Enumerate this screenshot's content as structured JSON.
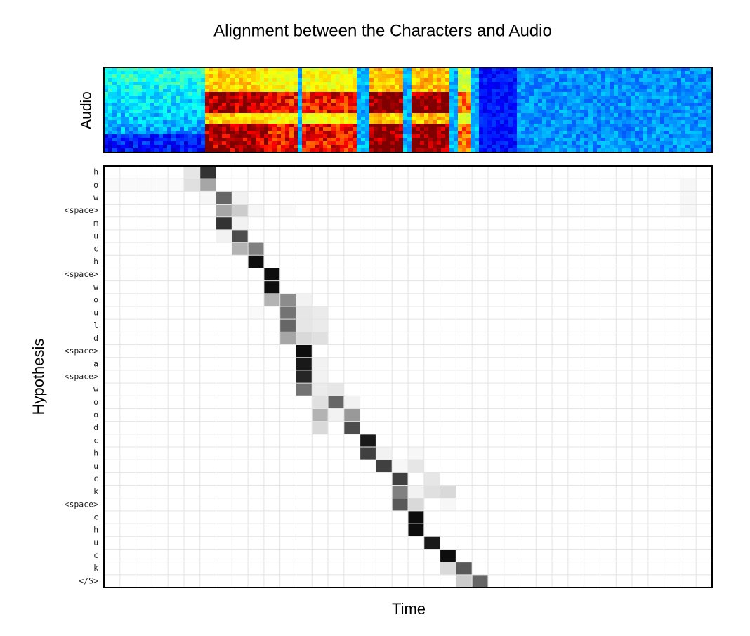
{
  "chart_data": {
    "type": "heatmap",
    "title": "Alignment between the Characters and Audio",
    "spectrogram_label": "Audio",
    "xlabel": "Time",
    "ylabel": "Hypothesis",
    "colormap": "gray_r",
    "vlim": [
      0,
      1
    ],
    "grid": true,
    "x": [
      null,
      null,
      null,
      null,
      null,
      null,
      null,
      null,
      null,
      null,
      null,
      null,
      null,
      null,
      null,
      null,
      null,
      null,
      null,
      null,
      null,
      null,
      null,
      null,
      null,
      null,
      null,
      null,
      null,
      null,
      null,
      null,
      null,
      null,
      null,
      null,
      null,
      null
    ],
    "y": [
      "h",
      "o",
      "w",
      "<space>",
      "m",
      "u",
      "c",
      "h",
      "<space>",
      "w",
      "o",
      "u",
      "l",
      "d",
      "<space>",
      "a",
      "<space>",
      "w",
      "o",
      "o",
      "d",
      "c",
      "h",
      "u",
      "c",
      "k",
      "<space>",
      "c",
      "h",
      "u",
      "c",
      "k",
      "</S>"
    ],
    "values": [
      [
        0,
        0,
        0,
        0,
        0,
        0.1,
        0.8,
        0,
        0,
        0,
        0,
        0,
        0,
        0,
        0,
        0,
        0,
        0,
        0,
        0,
        0,
        0,
        0,
        0,
        0,
        0,
        0,
        0,
        0,
        0,
        0,
        0,
        0,
        0,
        0,
        0,
        0,
        0
      ],
      [
        0.02,
        0.02,
        0.02,
        0.02,
        0.02,
        0.12,
        0.35,
        0,
        0,
        0,
        0,
        0,
        0,
        0,
        0,
        0,
        0,
        0,
        0,
        0,
        0,
        0,
        0,
        0,
        0,
        0,
        0,
        0,
        0,
        0,
        0,
        0,
        0,
        0,
        0,
        0,
        0.03,
        0
      ],
      [
        0,
        0,
        0,
        0,
        0,
        0,
        0.03,
        0.6,
        0.05,
        0,
        0,
        0,
        0,
        0,
        0,
        0,
        0,
        0,
        0,
        0,
        0,
        0,
        0,
        0,
        0,
        0,
        0,
        0,
        0,
        0,
        0,
        0,
        0,
        0,
        0,
        0,
        0.03,
        0
      ],
      [
        0,
        0,
        0,
        0,
        0,
        0,
        0,
        0.35,
        0.2,
        0.03,
        0,
        0.02,
        0,
        0,
        0,
        0,
        0,
        0,
        0,
        0,
        0,
        0,
        0,
        0,
        0,
        0,
        0,
        0,
        0,
        0,
        0,
        0,
        0,
        0,
        0,
        0,
        0.03,
        0
      ],
      [
        0,
        0,
        0,
        0,
        0,
        0,
        0,
        0.8,
        0.05,
        0,
        0,
        0,
        0,
        0,
        0,
        0,
        0,
        0,
        0,
        0,
        0,
        0,
        0,
        0,
        0,
        0,
        0,
        0,
        0,
        0,
        0,
        0,
        0,
        0,
        0,
        0,
        0,
        0
      ],
      [
        0,
        0,
        0,
        0,
        0,
        0,
        0,
        0.05,
        0.7,
        0,
        0,
        0,
        0,
        0,
        0,
        0,
        0,
        0,
        0,
        0,
        0,
        0,
        0,
        0,
        0,
        0,
        0,
        0,
        0,
        0,
        0,
        0,
        0,
        0,
        0,
        0,
        0,
        0
      ],
      [
        0,
        0,
        0,
        0,
        0,
        0,
        0,
        0,
        0.3,
        0.5,
        0,
        0,
        0,
        0,
        0,
        0,
        0,
        0,
        0,
        0,
        0,
        0,
        0,
        0,
        0,
        0,
        0,
        0,
        0,
        0,
        0,
        0,
        0,
        0,
        0,
        0,
        0,
        0
      ],
      [
        0,
        0,
        0,
        0,
        0,
        0,
        0,
        0,
        0,
        0.95,
        0,
        0,
        0,
        0,
        0,
        0,
        0,
        0,
        0,
        0,
        0,
        0,
        0,
        0,
        0,
        0,
        0,
        0,
        0,
        0,
        0,
        0,
        0,
        0,
        0,
        0,
        0,
        0
      ],
      [
        0,
        0,
        0,
        0,
        0,
        0,
        0,
        0,
        0,
        0,
        0.95,
        0,
        0,
        0,
        0,
        0,
        0,
        0,
        0,
        0,
        0,
        0,
        0,
        0,
        0,
        0,
        0,
        0,
        0,
        0,
        0,
        0,
        0,
        0,
        0,
        0,
        0,
        0
      ],
      [
        0,
        0,
        0,
        0,
        0,
        0,
        0,
        0,
        0,
        0,
        0.95,
        0,
        0,
        0,
        0,
        0,
        0,
        0,
        0,
        0,
        0,
        0,
        0,
        0,
        0,
        0,
        0,
        0,
        0,
        0,
        0,
        0,
        0,
        0,
        0,
        0,
        0,
        0
      ],
      [
        0,
        0,
        0,
        0,
        0,
        0,
        0,
        0,
        0,
        0,
        0.3,
        0.45,
        0.05,
        0,
        0,
        0,
        0,
        0,
        0,
        0,
        0,
        0,
        0,
        0,
        0,
        0,
        0,
        0,
        0,
        0,
        0,
        0,
        0,
        0,
        0,
        0,
        0,
        0
      ],
      [
        0,
        0,
        0,
        0,
        0,
        0,
        0,
        0,
        0,
        0.02,
        0,
        0.55,
        0.1,
        0.08,
        0,
        0,
        0,
        0,
        0,
        0,
        0,
        0,
        0,
        0,
        0,
        0,
        0,
        0,
        0,
        0,
        0,
        0,
        0,
        0,
        0,
        0,
        0,
        0
      ],
      [
        0,
        0,
        0,
        0,
        0,
        0,
        0,
        0,
        0,
        0,
        0,
        0.6,
        0.1,
        0.08,
        0,
        0,
        0,
        0,
        0,
        0,
        0,
        0,
        0,
        0,
        0,
        0,
        0,
        0,
        0,
        0,
        0,
        0,
        0,
        0,
        0,
        0,
        0,
        0
      ],
      [
        0,
        0,
        0,
        0,
        0,
        0,
        0,
        0,
        0,
        0,
        0,
        0.35,
        0.15,
        0.12,
        0,
        0,
        0,
        0,
        0,
        0,
        0,
        0,
        0,
        0,
        0,
        0,
        0,
        0,
        0,
        0,
        0,
        0,
        0,
        0,
        0,
        0,
        0,
        0
      ],
      [
        0,
        0,
        0,
        0,
        0,
        0,
        0,
        0,
        0,
        0,
        0,
        0,
        0.95,
        0,
        0,
        0,
        0,
        0,
        0,
        0,
        0,
        0,
        0,
        0,
        0,
        0,
        0,
        0,
        0,
        0,
        0,
        0,
        0,
        0,
        0,
        0,
        0,
        0
      ],
      [
        0,
        0,
        0,
        0,
        0,
        0,
        0,
        0,
        0,
        0,
        0,
        0,
        0.9,
        0.05,
        0,
        0,
        0,
        0,
        0,
        0,
        0,
        0,
        0,
        0,
        0,
        0,
        0,
        0,
        0,
        0,
        0,
        0,
        0,
        0,
        0,
        0,
        0,
        0
      ],
      [
        0,
        0,
        0,
        0,
        0,
        0,
        0,
        0,
        0,
        0,
        0,
        0,
        0.85,
        0.05,
        0,
        0,
        0,
        0,
        0,
        0,
        0,
        0,
        0,
        0,
        0,
        0,
        0,
        0,
        0,
        0,
        0,
        0,
        0,
        0,
        0,
        0,
        0,
        0
      ],
      [
        0,
        0,
        0,
        0,
        0,
        0,
        0,
        0,
        0,
        0,
        0,
        0,
        0.55,
        0.08,
        0.1,
        0,
        0,
        0,
        0,
        0,
        0,
        0,
        0,
        0,
        0,
        0,
        0,
        0,
        0,
        0,
        0,
        0,
        0,
        0,
        0,
        0,
        0,
        0
      ],
      [
        0,
        0,
        0,
        0,
        0,
        0,
        0,
        0,
        0,
        0,
        0,
        0,
        0,
        0.12,
        0.6,
        0.05,
        0,
        0,
        0,
        0,
        0,
        0,
        0,
        0,
        0,
        0,
        0,
        0,
        0,
        0,
        0,
        0,
        0,
        0,
        0,
        0,
        0,
        0
      ],
      [
        0,
        0,
        0,
        0,
        0,
        0,
        0,
        0,
        0,
        0,
        0,
        0,
        0,
        0.3,
        0.05,
        0.4,
        0,
        0,
        0,
        0,
        0,
        0,
        0,
        0,
        0,
        0,
        0,
        0,
        0,
        0,
        0,
        0,
        0,
        0,
        0,
        0,
        0,
        0
      ],
      [
        0,
        0,
        0,
        0,
        0,
        0,
        0,
        0,
        0,
        0,
        0,
        0,
        0,
        0.15,
        0,
        0.7,
        0,
        0,
        0,
        0,
        0,
        0,
        0,
        0,
        0,
        0,
        0,
        0,
        0,
        0,
        0,
        0,
        0,
        0,
        0,
        0,
        0,
        0
      ],
      [
        0,
        0,
        0,
        0,
        0,
        0,
        0,
        0,
        0,
        0,
        0,
        0,
        0,
        0,
        0,
        0,
        0.9,
        0,
        0,
        0,
        0,
        0,
        0,
        0,
        0,
        0,
        0,
        0,
        0,
        0,
        0,
        0,
        0,
        0,
        0,
        0,
        0,
        0
      ],
      [
        0,
        0,
        0,
        0,
        0,
        0,
        0,
        0,
        0,
        0,
        0,
        0,
        0,
        0,
        0,
        0,
        0.75,
        0.05,
        0,
        0.03,
        0,
        0,
        0,
        0,
        0,
        0,
        0,
        0,
        0,
        0,
        0,
        0,
        0,
        0,
        0,
        0,
        0,
        0
      ],
      [
        0,
        0,
        0,
        0,
        0,
        0,
        0,
        0,
        0,
        0,
        0,
        0,
        0,
        0,
        0,
        0,
        0,
        0.75,
        0.03,
        0.1,
        0,
        0,
        0,
        0,
        0,
        0,
        0,
        0,
        0,
        0,
        0,
        0,
        0,
        0,
        0,
        0,
        0,
        0
      ],
      [
        0,
        0,
        0,
        0,
        0,
        0,
        0,
        0,
        0,
        0,
        0,
        0,
        0,
        0,
        0,
        0,
        0,
        0,
        0.75,
        0,
        0.1,
        0,
        0,
        0,
        0,
        0,
        0,
        0,
        0,
        0,
        0,
        0,
        0,
        0,
        0,
        0,
        0,
        0
      ],
      [
        0,
        0,
        0,
        0,
        0,
        0,
        0,
        0,
        0,
        0,
        0,
        0,
        0,
        0,
        0,
        0,
        0,
        0,
        0.5,
        0.05,
        0.12,
        0.15,
        0,
        0,
        0,
        0,
        0,
        0,
        0,
        0,
        0,
        0,
        0,
        0,
        0,
        0,
        0,
        0
      ],
      [
        0,
        0,
        0,
        0,
        0,
        0,
        0,
        0,
        0,
        0,
        0,
        0,
        0,
        0,
        0,
        0,
        0,
        0,
        0.65,
        0.15,
        0,
        0.03,
        0,
        0,
        0,
        0,
        0,
        0,
        0,
        0,
        0,
        0,
        0,
        0,
        0,
        0,
        0,
        0
      ],
      [
        0,
        0,
        0,
        0,
        0,
        0,
        0,
        0,
        0,
        0,
        0,
        0,
        0,
        0,
        0,
        0,
        0,
        0,
        0,
        0.95,
        0,
        0,
        0,
        0,
        0,
        0,
        0,
        0,
        0,
        0,
        0,
        0,
        0,
        0,
        0,
        0,
        0,
        0
      ],
      [
        0,
        0,
        0,
        0,
        0,
        0,
        0,
        0,
        0,
        0,
        0,
        0,
        0,
        0,
        0,
        0,
        0,
        0,
        0,
        0.95,
        0,
        0,
        0,
        0,
        0,
        0,
        0,
        0,
        0,
        0,
        0,
        0,
        0,
        0,
        0,
        0,
        0,
        0
      ],
      [
        0,
        0,
        0,
        0,
        0,
        0,
        0,
        0,
        0,
        0,
        0,
        0,
        0,
        0,
        0,
        0,
        0,
        0,
        0,
        0,
        0.9,
        0,
        0,
        0,
        0,
        0,
        0,
        0,
        0,
        0,
        0,
        0,
        0,
        0,
        0,
        0,
        0,
        0
      ],
      [
        0,
        0,
        0,
        0,
        0,
        0,
        0,
        0,
        0,
        0,
        0,
        0,
        0,
        0,
        0,
        0,
        0,
        0,
        0,
        0,
        0,
        0.95,
        0,
        0,
        0,
        0,
        0,
        0,
        0,
        0,
        0,
        0,
        0,
        0,
        0,
        0,
        0,
        0
      ],
      [
        0,
        0,
        0,
        0,
        0,
        0,
        0,
        0,
        0,
        0,
        0,
        0,
        0,
        0,
        0,
        0,
        0,
        0,
        0,
        0,
        0,
        0.15,
        0.65,
        0,
        0,
        0,
        0,
        0,
        0,
        0,
        0,
        0,
        0,
        0,
        0,
        0,
        0,
        0
      ],
      [
        0,
        0,
        0,
        0,
        0,
        0,
        0,
        0,
        0,
        0,
        0,
        0,
        0,
        0,
        0,
        0,
        0,
        0,
        0,
        0,
        0,
        0,
        0.2,
        0.6,
        0,
        0,
        0,
        0,
        0,
        0,
        0,
        0,
        0,
        0,
        0,
        0,
        0,
        0
      ]
    ]
  }
}
